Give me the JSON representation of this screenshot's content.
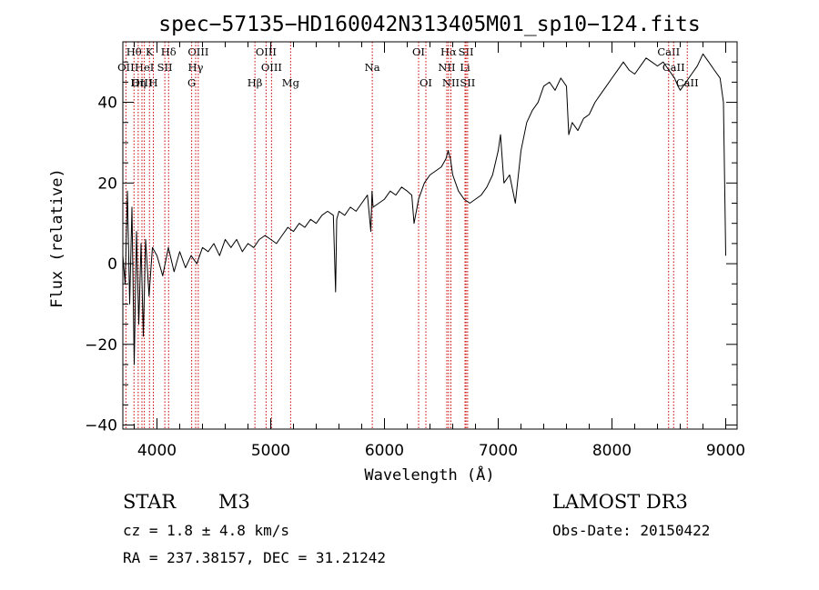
{
  "chart_data": {
    "type": "line",
    "title": "spec−57135−HD160042N313405M01_sp10−124.fits",
    "xlabel": "Wavelength (Å)",
    "ylabel": "Flux (relative)",
    "xlim": [
      3700,
      9100
    ],
    "ylim": [
      -41,
      55
    ],
    "x_ticks": [
      4000,
      5000,
      6000,
      7000,
      8000,
      9000
    ],
    "x_tick_labels": [
      "4000",
      "5000",
      "6000",
      "7000",
      "8000",
      "9000"
    ],
    "y_ticks": [
      -40,
      -20,
      0,
      20,
      40
    ],
    "y_tick_labels": [
      "−40",
      "−20",
      "0",
      "20",
      "40"
    ],
    "series": [
      {
        "name": "spectrum",
        "color": "#000000",
        "x": [
          3700,
          3720,
          3740,
          3760,
          3780,
          3800,
          3820,
          3840,
          3860,
          3880,
          3900,
          3930,
          3960,
          4000,
          4050,
          4100,
          4150,
          4200,
          4250,
          4300,
          4350,
          4400,
          4450,
          4500,
          4550,
          4600,
          4650,
          4700,
          4750,
          4800,
          4850,
          4900,
          4950,
          5000,
          5050,
          5100,
          5150,
          5200,
          5250,
          5300,
          5350,
          5400,
          5450,
          5500,
          5550,
          5570,
          5580,
          5600,
          5650,
          5700,
          5750,
          5800,
          5850,
          5880,
          5890,
          5900,
          5950,
          6000,
          6050,
          6100,
          6150,
          6200,
          6240,
          6260,
          6300,
          6350,
          6400,
          6450,
          6500,
          6540,
          6560,
          6580,
          6600,
          6650,
          6700,
          6750,
          6800,
          6850,
          6900,
          6950,
          7000,
          7020,
          7050,
          7100,
          7150,
          7200,
          7250,
          7300,
          7350,
          7400,
          7450,
          7500,
          7550,
          7600,
          7620,
          7650,
          7700,
          7750,
          7800,
          7850,
          7900,
          7950,
          8000,
          8050,
          8100,
          8150,
          8200,
          8250,
          8300,
          8350,
          8400,
          8450,
          8500,
          8550,
          8580,
          8600,
          8650,
          8700,
          8750,
          8800,
          8850,
          8900,
          8950,
          8980,
          9000
        ],
        "y": [
          2,
          -5,
          18,
          -10,
          14,
          -25,
          8,
          -15,
          5,
          -18,
          6,
          -8,
          4,
          2,
          -3,
          4,
          -2,
          3,
          -1,
          2,
          0,
          4,
          3,
          5,
          2,
          6,
          4,
          6,
          3,
          5,
          4,
          6,
          7,
          6,
          5,
          7,
          9,
          8,
          10,
          9,
          11,
          10,
          12,
          13,
          12,
          -7,
          11,
          13,
          12,
          14,
          13,
          15,
          17,
          8,
          18,
          14,
          15,
          16,
          18,
          17,
          19,
          18,
          17,
          10,
          16,
          20,
          22,
          23,
          24,
          26,
          28,
          26,
          22,
          18,
          16,
          15,
          16,
          17,
          19,
          22,
          28,
          32,
          20,
          22,
          15,
          28,
          35,
          38,
          40,
          44,
          45,
          43,
          46,
          44,
          32,
          35,
          33,
          36,
          37,
          40,
          42,
          44,
          46,
          48,
          50,
          48,
          47,
          49,
          51,
          50,
          49,
          50,
          48,
          46,
          44,
          43,
          45,
          47,
          49,
          52,
          50,
          48,
          46,
          40,
          2
        ]
      }
    ],
    "spectral_lines": [
      {
        "label": "Hθ",
        "wavelength": 3798,
        "row": 1
      },
      {
        "label": "K",
        "wavelength": 3934,
        "row": 1
      },
      {
        "label": "Hδ",
        "wavelength": 4102,
        "row": 1
      },
      {
        "label": "OIII",
        "wavelength": 4363,
        "row": 1
      },
      {
        "label": "OIII",
        "wavelength": 4959,
        "row": 1
      },
      {
        "label": "OI",
        "wavelength": 6300,
        "row": 1
      },
      {
        "label": "Hα",
        "wavelength": 6563,
        "row": 1
      },
      {
        "label": "SII",
        "wavelength": 6717,
        "row": 1
      },
      {
        "label": "CaII",
        "wavelength": 8498,
        "row": 1
      },
      {
        "label": "OII",
        "wavelength": 3727,
        "row": 2
      },
      {
        "label": "HeI",
        "wavelength": 3889,
        "row": 2
      },
      {
        "label": "SII",
        "wavelength": 4069,
        "row": 2
      },
      {
        "label": "Hγ",
        "wavelength": 4340,
        "row": 2
      },
      {
        "label": "OIII",
        "wavelength": 5007,
        "row": 2
      },
      {
        "label": "Na",
        "wavelength": 5893,
        "row": 2
      },
      {
        "label": "NII",
        "wavelength": 6548,
        "row": 2
      },
      {
        "label": "Li",
        "wavelength": 6708,
        "row": 2
      },
      {
        "label": "CaII",
        "wavelength": 8542,
        "row": 2
      },
      {
        "label": "OIII",
        "wavelength": 3868,
        "row": 3
      },
      {
        "label": "Hη",
        "wavelength": 3835,
        "row": 3
      },
      {
        "label": "H",
        "wavelength": 3968,
        "row": 3
      },
      {
        "label": "G",
        "wavelength": 4305,
        "row": 3
      },
      {
        "label": "Hβ",
        "wavelength": 4861,
        "row": 3
      },
      {
        "label": "Mg",
        "wavelength": 5175,
        "row": 3
      },
      {
        "label": "OI",
        "wavelength": 6364,
        "row": 3
      },
      {
        "label": "NII",
        "wavelength": 6584,
        "row": 3
      },
      {
        "label": "SII",
        "wavelength": 6731,
        "row": 3
      },
      {
        "label": "CaII",
        "wavelength": 8662,
        "row": 3
      }
    ],
    "line_color": "#cc0000"
  },
  "info": {
    "object_class": "STAR",
    "subclass": "M3",
    "survey": "LAMOST DR3",
    "cz": "cz = 1.8 ± 4.8 km/s",
    "obs_date": "Obs-Date: 20150422",
    "coords": "RA = 237.38157, DEC =  31.21242"
  }
}
